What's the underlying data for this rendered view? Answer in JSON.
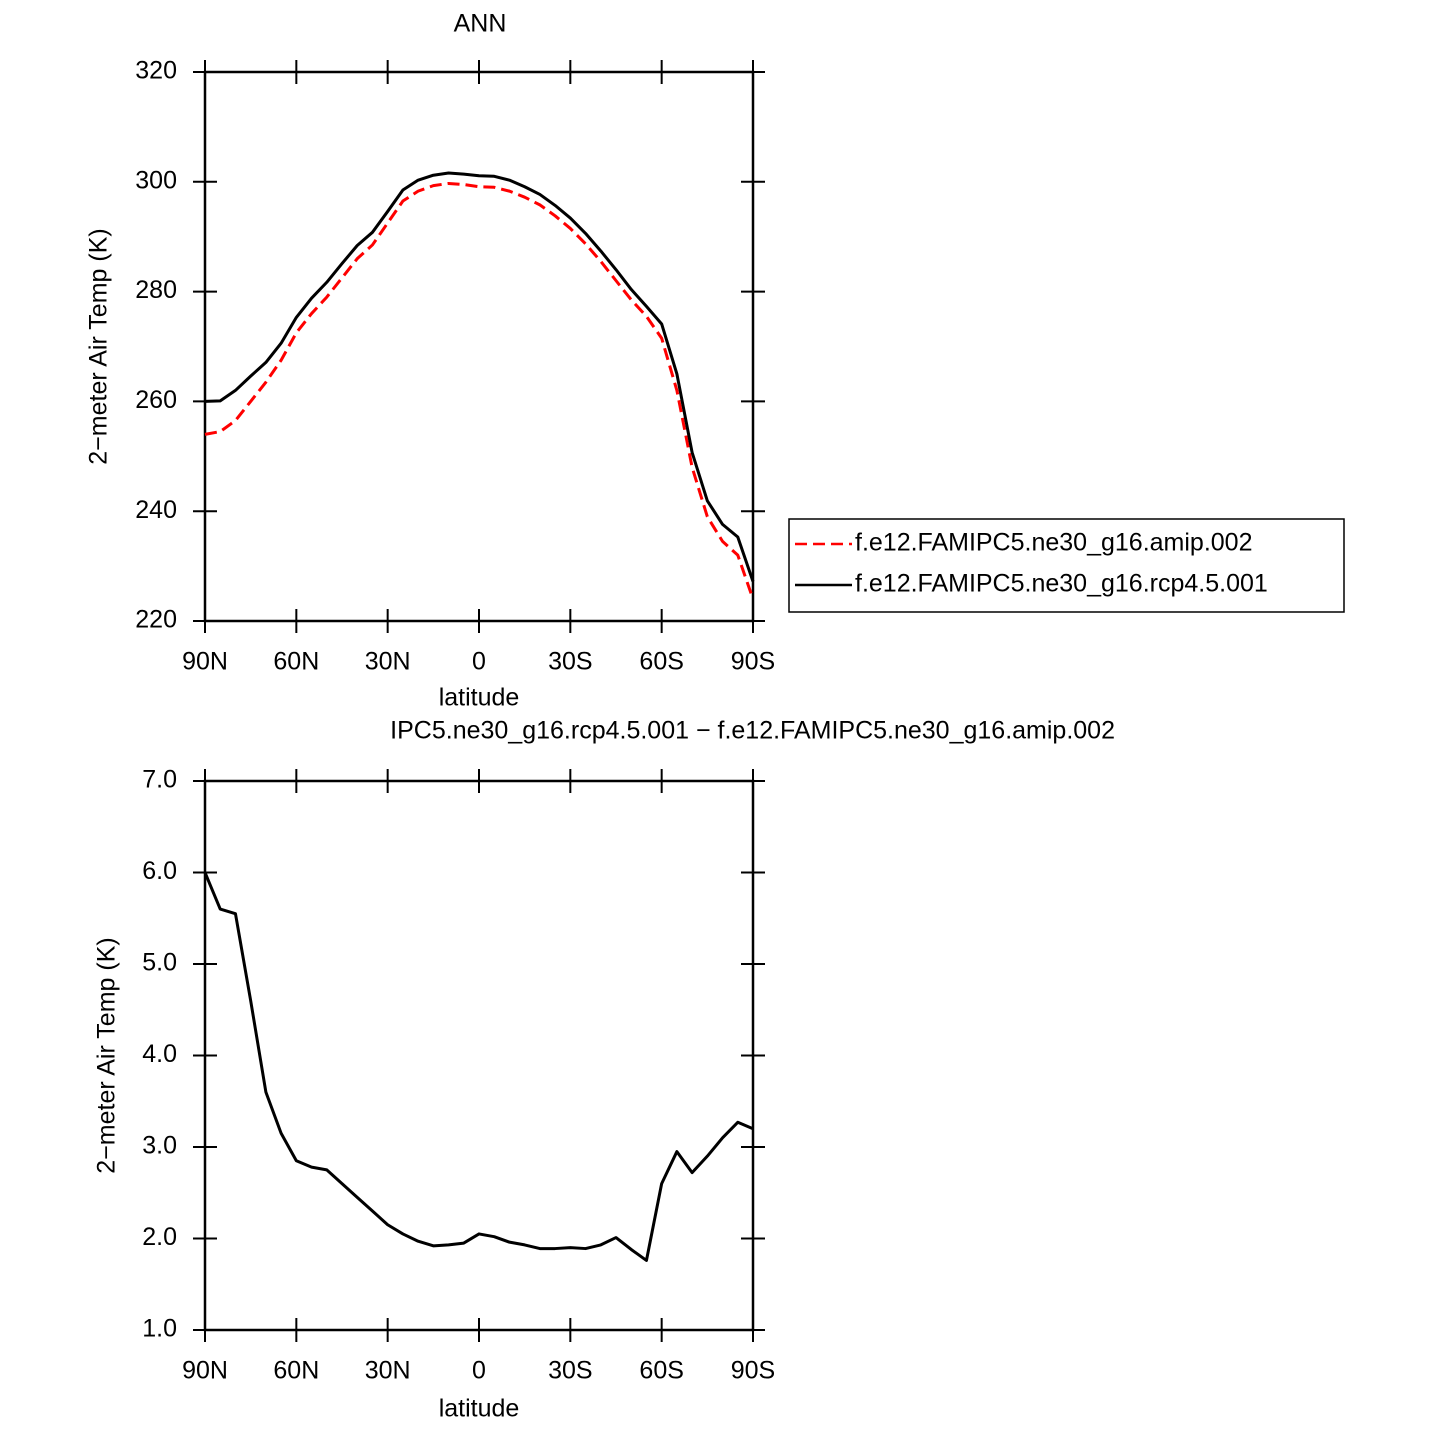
{
  "chart_data": [
    {
      "type": "line",
      "title": "ANN",
      "xlabel": "latitude",
      "ylabel": "2−meter Air Temp (K)",
      "x": [
        90,
        85,
        80,
        75,
        70,
        65,
        60,
        55,
        50,
        45,
        40,
        35,
        30,
        25,
        20,
        15,
        10,
        5,
        0,
        -5,
        -10,
        -15,
        -20,
        -25,
        -30,
        -35,
        -40,
        -45,
        -50,
        -55,
        -60,
        -65,
        -70,
        -75,
        -80,
        -85,
        -90
      ],
      "series": [
        {
          "name": "f.e12.FAMIPC5.ne30_g16.amip.002",
          "color": "#ff0000",
          "dashed": true,
          "values": [
            254,
            254.5,
            256.5,
            260,
            263.5,
            267.5,
            272.5,
            276,
            279,
            282.5,
            286,
            288.5,
            292.5,
            296.5,
            298.3,
            299.3,
            299.7,
            299.5,
            299.1,
            299,
            298.3,
            297.2,
            295.8,
            293.8,
            291.5,
            288.7,
            285.5,
            282,
            278.5,
            275.5,
            271.5,
            262,
            248,
            239,
            234.5,
            232,
            224
          ]
        },
        {
          "name": "f.e12.FAMIPC5.ne30_g16.rcp4.5.001",
          "color": "#000000",
          "dashed": false,
          "values": [
            260,
            260.1,
            262,
            264.6,
            267.1,
            270.6,
            275.3,
            278.8,
            281.7,
            285.1,
            288.4,
            290.8,
            294.6,
            298.5,
            300.3,
            301.2,
            301.6,
            301.4,
            301.1,
            301,
            300.3,
            299.1,
            297.7,
            295.7,
            293.4,
            290.6,
            287.4,
            284,
            280.4,
            277.3,
            274.1,
            265,
            250.7,
            241.9,
            237.6,
            235.3,
            227.2
          ]
        }
      ],
      "xlim": [
        90,
        -90
      ],
      "xticks": [
        {
          "value": 90,
          "label": "90N"
        },
        {
          "value": 60,
          "label": "60N"
        },
        {
          "value": 30,
          "label": "30N"
        },
        0,
        {
          "value": -30,
          "label": "30S"
        },
        {
          "value": -60,
          "label": "60S"
        },
        {
          "value": -90,
          "label": "90S"
        }
      ],
      "ylim": [
        220,
        320
      ],
      "yticks": [
        220,
        240,
        260,
        280,
        300,
        320
      ],
      "legend": "right"
    },
    {
      "type": "line",
      "title": "IPC5.ne30_g16.rcp4.5.001 − f.e12.FAMIPC5.ne30_g16.amip.002",
      "xlabel": "latitude",
      "ylabel": "2−meter Air Temp (K)",
      "x": [
        90,
        85,
        80,
        75,
        70,
        65,
        60,
        55,
        50,
        45,
        40,
        35,
        30,
        25,
        20,
        15,
        10,
        5,
        0,
        -5,
        -10,
        -15,
        -20,
        -25,
        -30,
        -35,
        -40,
        -45,
        -50,
        -55,
        -60,
        -65,
        -70,
        -75,
        -80,
        -85,
        -90
      ],
      "series": [
        {
          "color": "#000000",
          "dashed": false,
          "values": [
            6.0,
            5.6,
            5.55,
            4.6,
            3.6,
            3.15,
            2.85,
            2.78,
            2.75,
            2.6,
            2.45,
            2.3,
            2.15,
            2.05,
            1.97,
            1.92,
            1.93,
            1.95,
            2.05,
            2.02,
            1.96,
            1.93,
            1.89,
            1.89,
            1.9,
            1.89,
            1.93,
            2.01,
            1.88,
            1.76,
            2.6,
            2.95,
            2.72,
            2.9,
            3.1,
            3.27,
            3.2
          ]
        }
      ],
      "xlim": [
        90,
        -90
      ],
      "xticks": [
        {
          "value": 90,
          "label": "90N"
        },
        {
          "value": 60,
          "label": "60N"
        },
        {
          "value": 30,
          "label": "30N"
        },
        0,
        {
          "value": -30,
          "label": "30S"
        },
        {
          "value": -60,
          "label": "60S"
        },
        {
          "value": -90,
          "label": "90S"
        }
      ],
      "ylim": [
        1,
        7
      ],
      "yticks": [
        {
          "value": 1,
          "label": "1.0"
        },
        {
          "value": 2,
          "label": "2.0"
        },
        {
          "value": 3,
          "label": "3.0"
        },
        {
          "value": 4,
          "label": "4.0"
        },
        {
          "value": 5,
          "label": "5.0"
        },
        {
          "value": 6,
          "label": "6.0"
        },
        {
          "value": 7,
          "label": "7.0"
        }
      ]
    }
  ]
}
